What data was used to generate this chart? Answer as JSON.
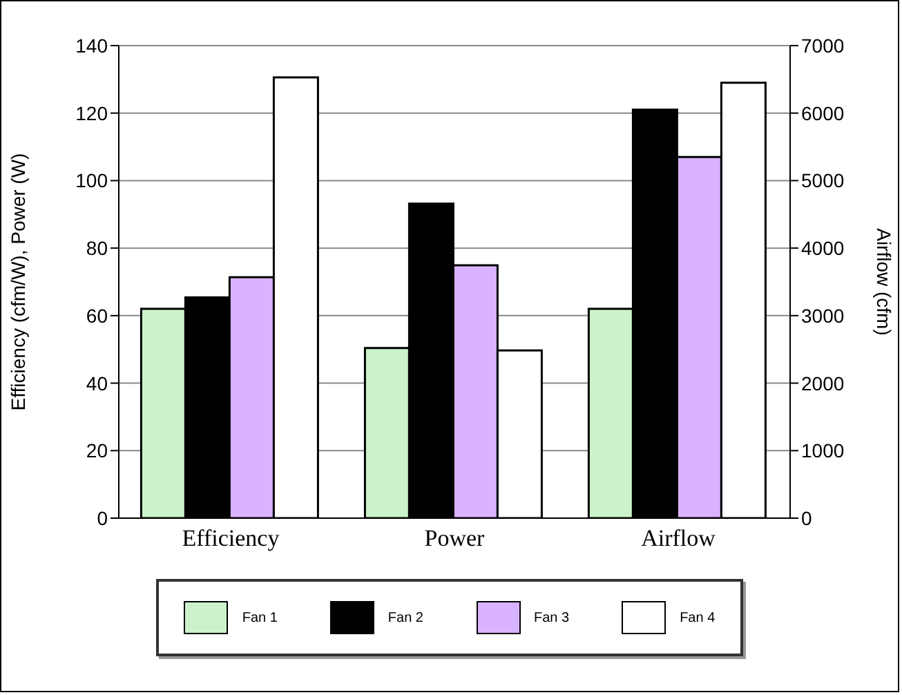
{
  "chart_data": {
    "type": "bar",
    "ylabel": "Efficiency (cfm/W),    Power (W)",
    "y2label": "Airflow (cfm)",
    "categories": [
      "Efficiency",
      "Power",
      "Airflow"
    ],
    "series": [
      {
        "name": "Fan 1",
        "color": "#ccf2cc",
        "values": [
          62,
          50.4,
          null
        ]
      },
      {
        "name": "Fan 2",
        "color": "#000000",
        "values": [
          65.4,
          93.2,
          null
        ]
      },
      {
        "name": "Fan 3",
        "color": "#d9b3ff",
        "values": [
          71.4,
          74.9,
          null
        ]
      },
      {
        "name": "Fan 4",
        "color": "#ffffff",
        "values": [
          130.6,
          49.7,
          null
        ]
      },
      {
        "color": "#ccf2cc",
        "axis": "y2",
        "values": [
          null,
          null,
          3100
        ]
      },
      {
        "color": "#000000",
        "axis": "y2",
        "values": [
          null,
          null,
          6050
        ]
      },
      {
        "color": "#d9b3ff",
        "axis": "y2",
        "values": [
          null,
          null,
          5350
        ]
      },
      {
        "color": "#ffffff",
        "axis": "y2",
        "values": [
          null,
          null,
          6450
        ]
      }
    ],
    "ylim": [
      0,
      140
    ],
    "yticks": [
      0,
      20,
      40,
      60,
      80,
      100,
      120,
      140
    ],
    "y2lim": [
      0,
      7000
    ],
    "y2ticks": [
      0,
      1000,
      2000,
      3000,
      4000,
      5000,
      6000,
      7000
    ],
    "grid": "y",
    "legend": "bottom"
  }
}
